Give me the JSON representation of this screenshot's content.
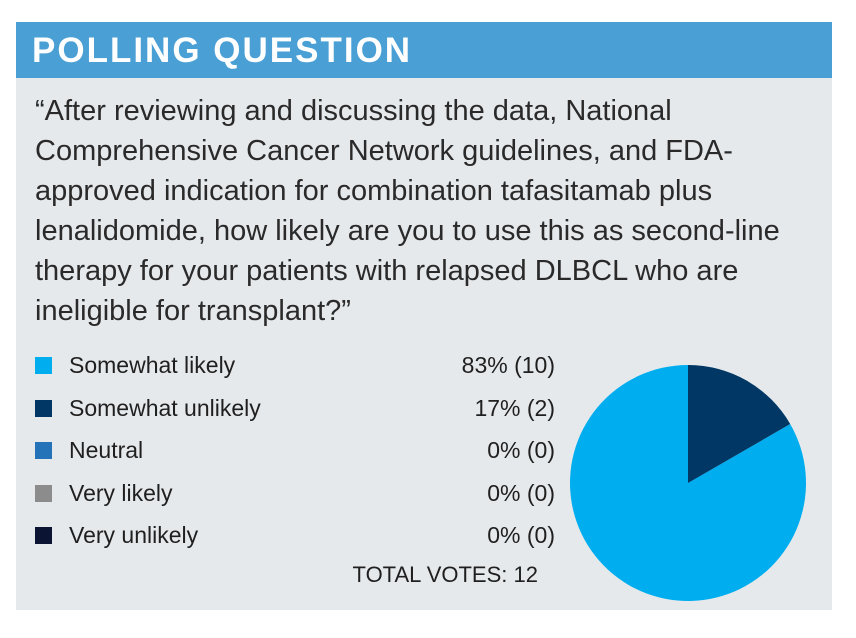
{
  "header": {
    "title": "POLLING QUESTION"
  },
  "question": "“After reviewing and discussing the data, National Comprehensive Cancer Network guidelines, and FDA-approved indication for combination tafasitamab plus lenalidomide, how likely are you to use this as second-line therapy for your patients with relapsed DLBCL who are ineligible for transplant?”",
  "chart_data": {
    "type": "pie",
    "title": "",
    "categories": [
      "Somewhat likely",
      "Somewhat unlikely",
      "Neutral",
      "Very likely",
      "Very unlikely"
    ],
    "values": [
      10,
      2,
      0,
      0,
      0
    ],
    "percent_labels": [
      "83% (10)",
      "17% (2)",
      "0% (0)",
      "0% (0)",
      "0% (0)"
    ],
    "colors": [
      "#00aeef",
      "#003764",
      "#2472b8",
      "#8c8c8c",
      "#0b1533"
    ],
    "legend_position": "left",
    "total_label": "TOTAL VOTES:",
    "total_value": "12"
  }
}
